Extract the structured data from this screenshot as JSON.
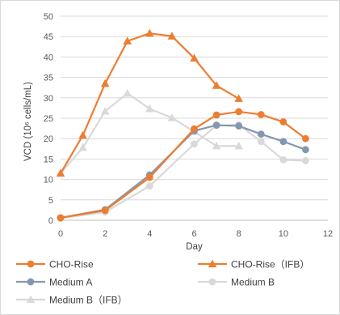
{
  "chart_data": {
    "type": "line",
    "title": "",
    "xlabel": "Day",
    "ylabel": "VCD (10⁶ cells/mL)",
    "xlim": [
      0,
      12
    ],
    "ylim": [
      0,
      50
    ],
    "x_ticks": [
      0,
      2,
      4,
      6,
      8,
      10,
      12
    ],
    "y_ticks": [
      0,
      5,
      10,
      15,
      20,
      25,
      30,
      35,
      40,
      45,
      50
    ],
    "grid": "horizontal",
    "legend_position": "bottom",
    "series": [
      {
        "name": "CHO-Rise",
        "color": "#ED7D31",
        "marker": "circle",
        "x": [
          0,
          2,
          4,
          6,
          7,
          8,
          9,
          10,
          11
        ],
        "y": [
          0.6,
          2.4,
          10.5,
          22.4,
          25.8,
          26.6,
          25.9,
          24.1,
          20.0
        ]
      },
      {
        "name": "CHO-Rise（IFB）",
        "color": "#ED7D31",
        "marker": "triangle",
        "x": [
          0,
          1,
          2,
          3,
          4,
          5,
          6,
          7,
          8
        ],
        "y": [
          11.5,
          20.8,
          33.5,
          43.9,
          45.8,
          45.1,
          39.7,
          33.0,
          29.8
        ]
      },
      {
        "name": "Medium A",
        "color": "#8497B0",
        "marker": "circle",
        "x": [
          0,
          2,
          4,
          6,
          7,
          8,
          9,
          10,
          11
        ],
        "y": [
          0.6,
          2.6,
          11.1,
          21.9,
          23.3,
          23.1,
          21.1,
          19.3,
          17.3
        ]
      },
      {
        "name": "Medium B",
        "color": "#D9D9D9",
        "marker": "circle",
        "x": [
          0,
          2,
          4,
          6,
          7,
          8,
          9,
          10,
          11
        ],
        "y": [
          0.5,
          2.0,
          8.4,
          18.7,
          23.2,
          23.4,
          19.3,
          14.8,
          14.6
        ]
      },
      {
        "name": "Medium B（IFB）",
        "color": "#D9D9D9",
        "marker": "triangle",
        "x": [
          0,
          1,
          2,
          3,
          4,
          5,
          6,
          7,
          8
        ],
        "y": [
          11.5,
          17.8,
          26.7,
          31.1,
          27.3,
          25.1,
          21.7,
          18.2,
          18.2
        ]
      }
    ]
  }
}
